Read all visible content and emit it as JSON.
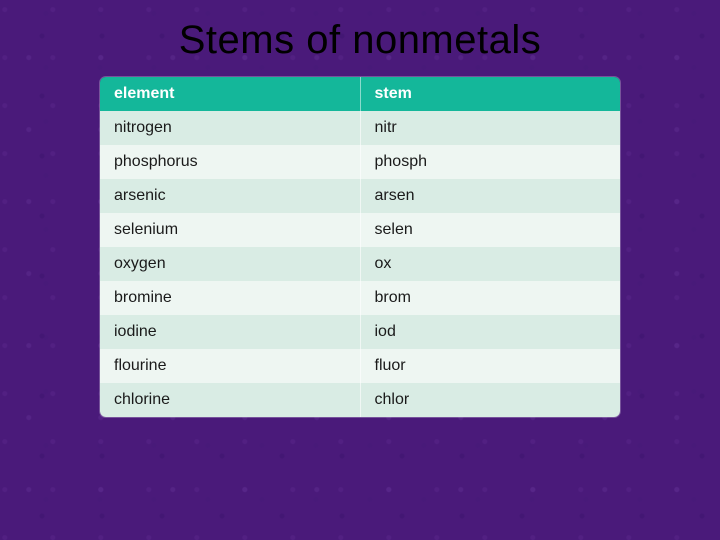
{
  "slide": {
    "title": "Stems of nonmetals",
    "background_color": "#4a1a7a",
    "title_color": "#000000",
    "title_fontsize": 40
  },
  "table": {
    "type": "table",
    "header_bg": "#14b79a",
    "header_text_color": "#ffffff",
    "row_colors": [
      "#d9ece4",
      "#eef6f2"
    ],
    "cell_text_color": "#1a1a1a",
    "fontsize": 16,
    "columns": [
      "element",
      "stem"
    ],
    "rows": [
      [
        "nitrogen",
        "nitr"
      ],
      [
        "phosphorus",
        "phosph"
      ],
      [
        "arsenic",
        "arsen"
      ],
      [
        "selenium",
        "selen"
      ],
      [
        "oxygen",
        "ox"
      ],
      [
        "bromine",
        "brom"
      ],
      [
        "iodine",
        "iod"
      ],
      [
        "flourine",
        "fluor"
      ],
      [
        "chlorine",
        "chlor"
      ]
    ]
  }
}
